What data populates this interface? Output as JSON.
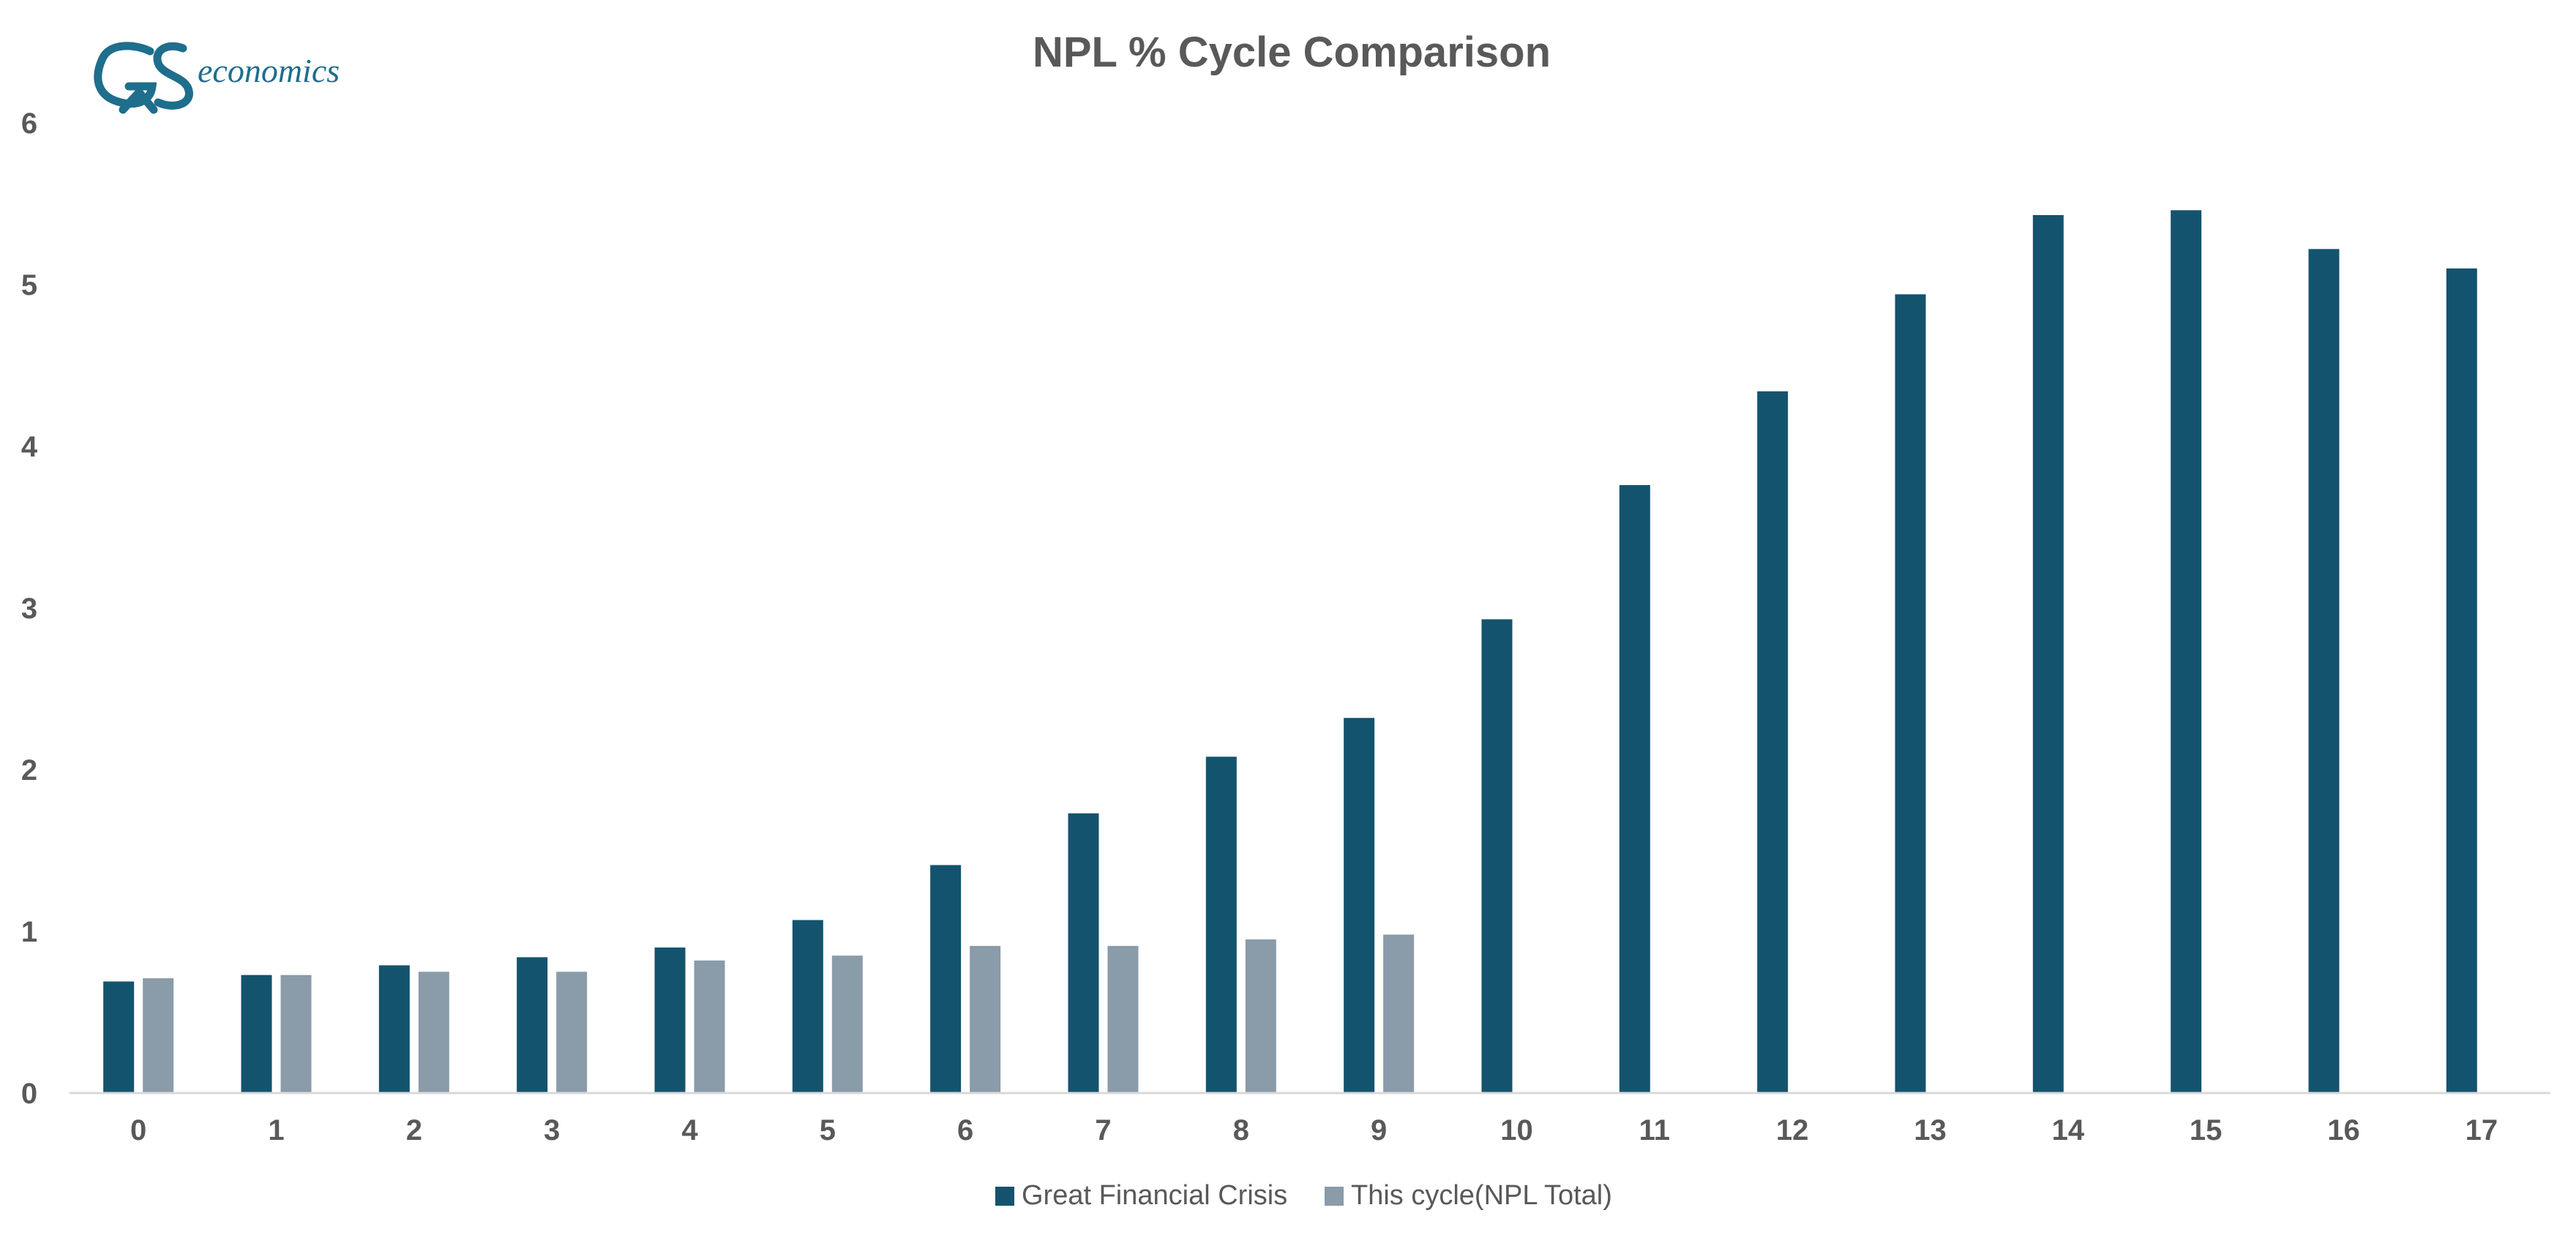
{
  "logo": {
    "text": "economics",
    "color": "#1e6e8c"
  },
  "chart_data": {
    "type": "bar",
    "title": "NPL %  Cycle Comparison",
    "xlabel": "",
    "ylabel": "",
    "categories": [
      "0",
      "1",
      "2",
      "3",
      "4",
      "5",
      "6",
      "7",
      "8",
      "9",
      "10",
      "11",
      "12",
      "13",
      "14",
      "15",
      "16",
      "17"
    ],
    "ylim": [
      0,
      6
    ],
    "yticks": [
      0,
      1,
      2,
      3,
      4,
      5,
      6
    ],
    "grid": false,
    "legend_position": "bottom",
    "series": [
      {
        "name": "Great Financial Crisis",
        "color": "#14536e",
        "values": [
          0.69,
          0.73,
          0.79,
          0.84,
          0.9,
          1.07,
          1.41,
          1.73,
          2.08,
          2.32,
          2.93,
          3.76,
          4.34,
          4.94,
          5.43,
          5.46,
          5.22,
          5.1
        ]
      },
      {
        "name": "This cycle(NPL Total)",
        "color": "#8a9baa",
        "values": [
          0.71,
          0.73,
          0.75,
          0.75,
          0.82,
          0.85,
          0.91,
          0.91,
          0.95,
          0.98,
          null,
          null,
          null,
          null,
          null,
          null,
          null,
          null
        ]
      }
    ]
  }
}
